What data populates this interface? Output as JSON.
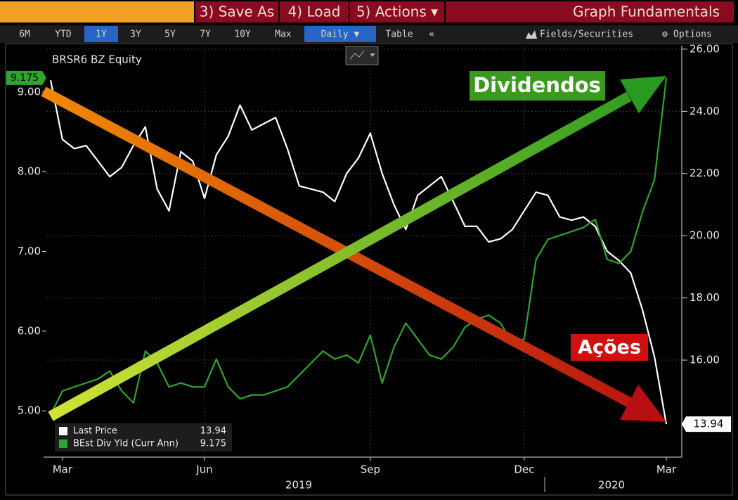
{
  "toolbar": {
    "menu": [
      "3) Save As",
      "4) Load",
      "5) Actions ▾"
    ],
    "app_title": "Graph Fundamentals",
    "ranges": [
      "6M",
      "YTD",
      "1Y",
      "3Y",
      "5Y",
      "7Y",
      "10Y",
      "Max"
    ],
    "frequency": "Daily ▼",
    "table": "Table",
    "collapse": "«",
    "fields": "Fields/Securities",
    "options": "Options"
  },
  "chart_data": {
    "type": "line",
    "title": "BRSR6 BZ Equity",
    "categories": [
      null,
      "Mar",
      null,
      null,
      null,
      null,
      null,
      null,
      null,
      null,
      null,
      null,
      null,
      "Jun",
      null,
      null,
      null,
      null,
      null,
      null,
      null,
      null,
      null,
      null,
      null,
      null,
      null,
      "Sep",
      null,
      null,
      null,
      null,
      null,
      null,
      null,
      null,
      null,
      null,
      null,
      null,
      "Dec",
      null,
      null,
      null,
      null,
      null,
      null,
      null,
      null,
      null,
      null,
      null,
      "Mar"
    ],
    "years": [
      "2019",
      "2020"
    ],
    "series": [
      {
        "name": "Last Price",
        "color": "#ffffff",
        "axis": "y2",
        "values": [
          25.0,
          23.1,
          22.8,
          22.9,
          22.4,
          21.9,
          22.2,
          22.9,
          23.5,
          21.5,
          20.8,
          22.7,
          22.4,
          21.2,
          22.6,
          23.2,
          24.2,
          23.4,
          23.6,
          23.8,
          22.8,
          21.6,
          21.5,
          21.4,
          21.1,
          22.0,
          22.5,
          23.3,
          22.0,
          21.0,
          20.2,
          21.3,
          21.6,
          21.9,
          21.1,
          20.3,
          20.3,
          19.8,
          19.9,
          20.2,
          20.8,
          21.4,
          21.3,
          20.6,
          20.5,
          20.6,
          20.3,
          19.5,
          19.2,
          18.8,
          17.6,
          16.1,
          13.94
        ]
      },
      {
        "name": "BEst Div Yld (Curr Ann)",
        "color": "#2fa52f",
        "values": [
          4.95,
          5.25,
          5.3,
          5.35,
          5.4,
          5.5,
          5.25,
          5.1,
          5.75,
          5.6,
          5.3,
          5.35,
          5.3,
          5.3,
          5.65,
          5.3,
          5.15,
          5.2,
          5.2,
          5.25,
          5.3,
          5.45,
          5.6,
          5.75,
          5.65,
          5.7,
          5.6,
          5.95,
          5.35,
          5.8,
          6.1,
          5.9,
          5.7,
          5.65,
          5.8,
          6.05,
          6.15,
          6.2,
          6.1,
          5.85,
          5.9,
          6.9,
          7.15,
          7.2,
          7.25,
          7.3,
          7.4,
          6.9,
          6.85,
          7.0,
          7.5,
          7.9,
          9.175
        ]
      }
    ],
    "ylim": [
      4.42,
      9.58
    ],
    "yticks": [
      {
        "value": 5,
        "label": "5.00"
      },
      {
        "value": 6,
        "label": "6.00"
      },
      {
        "value": 7,
        "label": "7.00"
      },
      {
        "value": 8,
        "label": "8.00"
      },
      {
        "value": 9,
        "label": "9.00"
      }
    ],
    "y2lim": [
      12.88,
      26.11
    ],
    "y2ticks": [
      {
        "value": 16,
        "label": "16.00"
      },
      {
        "value": 18,
        "label": "18.00"
      },
      {
        "value": 20,
        "label": "20.00"
      },
      {
        "value": 22,
        "label": "22.00"
      },
      {
        "value": 24,
        "label": "24.00"
      },
      {
        "value": 26,
        "label": "26.00"
      }
    ],
    "annotations": [
      {
        "text": "Dividendos"
      },
      {
        "text": "Ações"
      }
    ],
    "grid": true
  }
}
